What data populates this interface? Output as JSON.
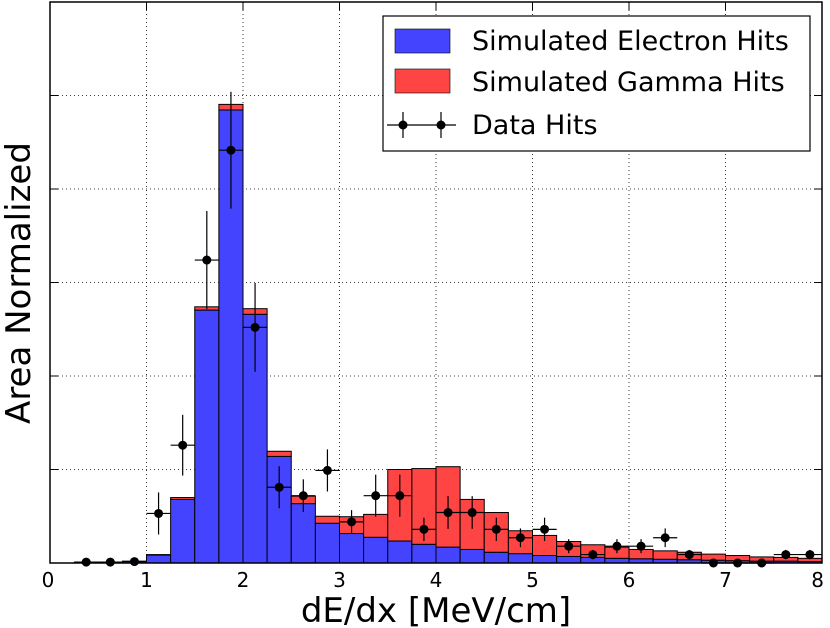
{
  "chart_data": {
    "type": "bar",
    "stacked": true,
    "xlabel": "dE/dx [MeV/cm]",
    "ylabel": "Area Normalized",
    "xlim": [
      0,
      8
    ],
    "ylim": [
      0,
      1.2
    ],
    "xticks": [
      "0",
      "1",
      "2",
      "3",
      "4",
      "5",
      "6",
      "7",
      "8"
    ],
    "yticks": [
      0.2,
      0.4,
      0.6,
      0.8,
      1.0
    ],
    "grid": true,
    "legend_position": "top-right",
    "bin_width": 0.25,
    "bin_edges_start": 0.25,
    "series": [
      {
        "name": "Simulated Electron Hits",
        "color": "#4444ff",
        "values": [
          0.001,
          0.002,
          0.004,
          0.017,
          0.136,
          0.541,
          0.969,
          0.532,
          0.228,
          0.127,
          0.085,
          0.063,
          0.055,
          0.047,
          0.04,
          0.034,
          0.029,
          0.023,
          0.02,
          0.016,
          0.014,
          0.012,
          0.01,
          0.009,
          0.008,
          0.007,
          0.006,
          0.005,
          0.004,
          0.004,
          0.003
        ]
      },
      {
        "name": "Simulated Gamma Hits",
        "color": "#ff4444",
        "values": [
          0.0,
          0.0,
          0.0,
          0.001,
          0.004,
          0.007,
          0.012,
          0.012,
          0.011,
          0.016,
          0.015,
          0.036,
          0.049,
          0.153,
          0.162,
          0.172,
          0.107,
          0.085,
          0.049,
          0.043,
          0.032,
          0.027,
          0.024,
          0.02,
          0.018,
          0.016,
          0.013,
          0.011,
          0.009,
          0.008,
          0.007
        ]
      }
    ],
    "data_points": {
      "name": "Data Hits",
      "color": "#000000",
      "x": [
        0.375,
        0.625,
        0.875,
        1.125,
        1.375,
        1.625,
        1.875,
        2.125,
        2.375,
        2.625,
        2.875,
        3.125,
        3.375,
        3.625,
        3.875,
        4.125,
        4.375,
        4.625,
        4.875,
        5.125,
        5.375,
        5.625,
        5.875,
        6.125,
        6.375,
        6.625,
        6.875,
        7.125,
        7.375,
        7.625,
        7.875
      ],
      "y": [
        0.002,
        0.002,
        0.003,
        0.106,
        0.252,
        0.648,
        0.883,
        0.504,
        0.162,
        0.144,
        0.198,
        0.088,
        0.144,
        0.144,
        0.072,
        0.108,
        0.108,
        0.072,
        0.054,
        0.072,
        0.036,
        0.018,
        0.036,
        0.036,
        0.054,
        0.018,
        0.0,
        0.0,
        0.0,
        0.018,
        0.018
      ],
      "yerr": [
        0.003,
        0.004,
        0.005,
        0.045,
        0.065,
        0.105,
        0.125,
        0.095,
        0.045,
        0.035,
        0.045,
        0.025,
        0.045,
        0.045,
        0.025,
        0.035,
        0.035,
        0.025,
        0.02,
        0.025,
        0.015,
        0.01,
        0.015,
        0.015,
        0.02,
        0.01,
        0.0,
        0.0,
        0.0,
        0.01,
        0.01
      ]
    }
  }
}
